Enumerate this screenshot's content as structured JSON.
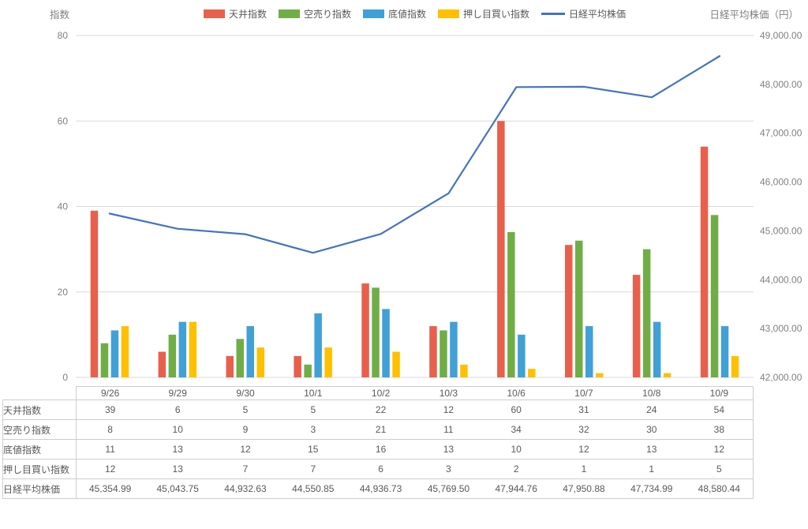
{
  "chart_data": {
    "type": "bar",
    "title": "",
    "categories": [
      "9/26",
      "9/29",
      "9/30",
      "10/1",
      "10/2",
      "10/3",
      "10/6",
      "10/7",
      "10/8",
      "10/9"
    ],
    "series": [
      {
        "key": "ceiling-index",
        "name": "天井指数",
        "type": "bar",
        "axis": "left",
        "color": "#E8604C",
        "values": [
          39,
          6,
          5,
          5,
          22,
          12,
          60,
          31,
          24,
          54
        ]
      },
      {
        "key": "short-sell-index",
        "name": "空売り指数",
        "type": "bar",
        "axis": "left",
        "color": "#70AD47",
        "values": [
          8,
          10,
          9,
          3,
          21,
          11,
          34,
          32,
          30,
          38
        ]
      },
      {
        "key": "bottom-index",
        "name": "底値指数",
        "type": "bar",
        "axis": "left",
        "color": "#41A0D6",
        "values": [
          11,
          13,
          12,
          15,
          16,
          13,
          10,
          12,
          13,
          12
        ]
      },
      {
        "key": "dip-buy-index",
        "name": "押し目買い指数",
        "type": "bar",
        "axis": "left",
        "color": "#FFC000",
        "values": [
          12,
          13,
          7,
          7,
          6,
          3,
          2,
          1,
          1,
          5
        ]
      },
      {
        "key": "nikkei-average",
        "name": "日経平均株価",
        "type": "line",
        "axis": "right",
        "color": "#4472C4",
        "values": [
          45354.99,
          45043.75,
          44932.63,
          44550.85,
          44936.73,
          45769.5,
          47944.76,
          47950.88,
          47734.99,
          48580.44
        ]
      }
    ],
    "left_axis": {
      "title": "指数",
      "min": 0,
      "max": 80,
      "ticks": [
        0,
        20,
        40,
        60,
        80
      ],
      "tick_labels": [
        "0",
        "20",
        "40",
        "60",
        "80"
      ]
    },
    "right_axis": {
      "title": "日経平均株価（円）",
      "min": 42000,
      "max": 49000,
      "ticks": [
        42000,
        43000,
        44000,
        45000,
        46000,
        47000,
        48000,
        49000
      ],
      "tick_labels": [
        "42,000.00",
        "43,000.00",
        "44,000.00",
        "45,000.00",
        "46,000.00",
        "47,000.00",
        "48,000.00",
        "49,000.00"
      ]
    },
    "grid": true,
    "legend_position": "top"
  },
  "table": {
    "corner_label": "",
    "columns": [
      "9/26",
      "9/29",
      "9/30",
      "10/1",
      "10/2",
      "10/3",
      "10/6",
      "10/7",
      "10/8",
      "10/9"
    ],
    "rows": [
      {
        "label": "天井指数",
        "values": [
          "39",
          "6",
          "5",
          "5",
          "22",
          "12",
          "60",
          "31",
          "24",
          "54"
        ]
      },
      {
        "label": "空売り指数",
        "values": [
          "8",
          "10",
          "9",
          "3",
          "21",
          "11",
          "34",
          "32",
          "30",
          "38"
        ]
      },
      {
        "label": "底値指数",
        "values": [
          "11",
          "13",
          "12",
          "15",
          "16",
          "13",
          "10",
          "12",
          "13",
          "12"
        ]
      },
      {
        "label": "押し目買い指数",
        "values": [
          "12",
          "13",
          "7",
          "7",
          "6",
          "3",
          "2",
          "1",
          "1",
          "5"
        ]
      },
      {
        "label": "日経平均株価",
        "values": [
          "45,354.99",
          "45,043.75",
          "44,932.63",
          "44,550.85",
          "44,936.73",
          "45,769.50",
          "47,944.76",
          "47,950.88",
          "47,734.99",
          "48,580.44"
        ]
      }
    ]
  },
  "colors": {
    "grid": "#D9D9D9",
    "axis_text": "#808080",
    "table_text": "#595959",
    "table_border": "#CFCDCB",
    "legend_text": "#595959"
  }
}
